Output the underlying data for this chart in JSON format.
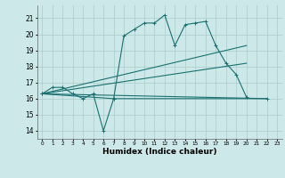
{
  "title": "",
  "xlabel": "Humidex (Indice chaleur)",
  "bg_color": "#cce8e8",
  "grid_color": "#aacccc",
  "line_color": "#1a7070",
  "xlim": [
    -0.5,
    23.5
  ],
  "ylim": [
    13.5,
    21.8
  ],
  "yticks": [
    14,
    15,
    16,
    17,
    18,
    19,
    20,
    21
  ],
  "xticks": [
    0,
    1,
    2,
    3,
    4,
    5,
    6,
    7,
    8,
    9,
    10,
    11,
    12,
    13,
    14,
    15,
    16,
    17,
    18,
    19,
    20,
    21,
    22,
    23
  ],
  "series_main": {
    "x": [
      0,
      1,
      2,
      3,
      4,
      5,
      6,
      7,
      8,
      9,
      10,
      11,
      12,
      13,
      14,
      15,
      16,
      17,
      18,
      19,
      20
    ],
    "y": [
      16.3,
      16.7,
      16.7,
      16.3,
      16.0,
      16.3,
      14.0,
      16.0,
      19.9,
      20.3,
      20.7,
      20.7,
      21.2,
      19.3,
      20.6,
      20.7,
      20.8,
      19.3,
      18.2,
      17.5,
      16.1
    ]
  },
  "series_flat": {
    "x": [
      0,
      7,
      22
    ],
    "y": [
      16.3,
      16.0,
      16.0
    ]
  },
  "series_line1": {
    "x": [
      0,
      20
    ],
    "y": [
      16.3,
      19.3
    ]
  },
  "series_line2": {
    "x": [
      0,
      20
    ],
    "y": [
      16.3,
      18.2
    ]
  },
  "series_line3": {
    "x": [
      0,
      22
    ],
    "y": [
      16.3,
      16.0
    ]
  }
}
